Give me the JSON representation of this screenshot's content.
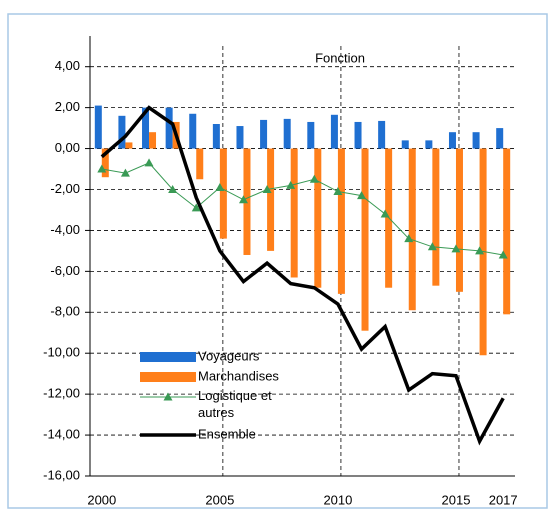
{
  "chart_data": {
    "type": "bar-line",
    "annotation": "Fonction",
    "categories": [
      2000,
      null,
      null,
      null,
      null,
      2005,
      null,
      null,
      null,
      null,
      2010,
      null,
      null,
      null,
      null,
      2015,
      null,
      2017
    ],
    "series": [
      {
        "name": "Voyageurs",
        "kind": "bar",
        "color": "#1f6fd1",
        "values": [
          2.1,
          1.6,
          2.0,
          2.0,
          1.7,
          1.2,
          1.1,
          1.4,
          1.45,
          1.3,
          1.65,
          1.3,
          1.35,
          0.4,
          0.4,
          0.8,
          0.8,
          1.0
        ]
      },
      {
        "name": "Marchandises",
        "kind": "bar",
        "color": "#ff7f1a",
        "values": [
          -1.4,
          0.3,
          0.8,
          1.3,
          -1.5,
          -4.4,
          -5.2,
          -5.0,
          -6.3,
          -6.8,
          -7.1,
          -8.9,
          -6.8,
          -7.9,
          -6.7,
          -7.0,
          -10.1,
          -8.1
        ]
      },
      {
        "name": "Logistique et autres",
        "kind": "line-marker",
        "color": "#3a9a55",
        "values": [
          -1.0,
          -1.2,
          -0.7,
          -2.0,
          -2.9,
          -1.9,
          -2.5,
          -2.0,
          -1.8,
          -1.5,
          -2.1,
          -2.3,
          -3.2,
          -4.4,
          -4.8,
          -4.9,
          -5.0,
          -5.2
        ]
      },
      {
        "name": "Ensemble",
        "kind": "line",
        "color": "#000000",
        "values": [
          -0.4,
          0.6,
          2.0,
          1.2,
          -2.4,
          -5.0,
          -6.5,
          -5.6,
          -6.6,
          -6.8,
          -7.6,
          -9.8,
          -8.7,
          -11.8,
          -11.0,
          -11.1,
          -14.3,
          -12.2
        ]
      }
    ],
    "ylim": [
      -16,
      5.5
    ],
    "yticks": [
      {
        "value": 4,
        "label": "4,00"
      },
      {
        "value": 2,
        "label": "2,00"
      },
      {
        "value": 0,
        "label": "0,00"
      },
      {
        "value": -2,
        "label": "-2,00"
      },
      {
        "value": -4,
        "label": "-4,00"
      },
      {
        "value": -6,
        "label": "-6,00"
      },
      {
        "value": -8,
        "label": "-8,00"
      },
      {
        "value": -10,
        "label": "-10,00"
      },
      {
        "value": -12,
        "label": "-12,00"
      },
      {
        "value": -14,
        "label": "-14,00"
      },
      {
        "value": -16,
        "label": "-16,00"
      }
    ],
    "grid": true
  }
}
